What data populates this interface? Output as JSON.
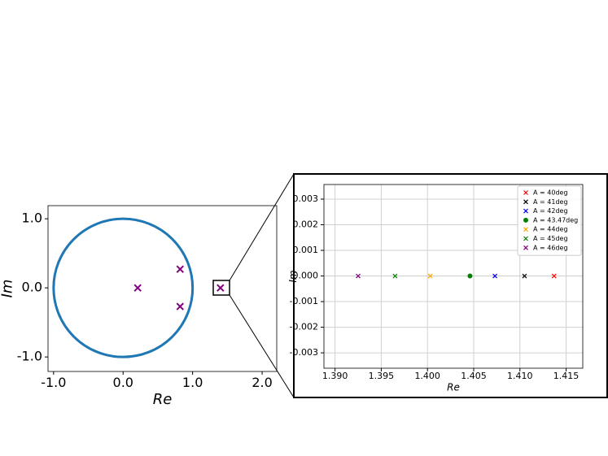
{
  "chart_data": [
    {
      "type": "scatter",
      "xlabel": "Re",
      "ylabel": "Im",
      "xlim": [
        -1.08,
        2.21
      ],
      "ylim": [
        -1.21,
        1.19
      ],
      "xticks": [
        {
          "value": -1,
          "label": "-1.0"
        },
        {
          "value": 0,
          "label": "0.0"
        },
        {
          "value": 1,
          "label": "1.0"
        },
        {
          "value": 2,
          "label": "2.0"
        }
      ],
      "yticks": [
        {
          "value": -1,
          "label": "-1.0"
        },
        {
          "value": 0,
          "label": "0.0"
        },
        {
          "value": 1,
          "label": "1.0"
        }
      ],
      "grid": false,
      "series": [
        {
          "color": "#800080",
          "marker": "x",
          "x": [
            0.21,
            0.82,
            0.82,
            1.4
          ],
          "y": [
            0,
            0.27,
            -0.27,
            0
          ]
        }
      ]
    },
    {
      "type": "scatter",
      "xlabel": "Re",
      "ylabel": "Im",
      "xlim": [
        1.3888,
        1.4168
      ],
      "ylim": [
        -0.0036,
        0.00357
      ],
      "xticks": [
        {
          "value": 1.39,
          "label": "1.390"
        },
        {
          "value": 1.395,
          "label": "1.395"
        },
        {
          "value": 1.4,
          "label": "1.400"
        },
        {
          "value": 1.405,
          "label": "1.405"
        },
        {
          "value": 1.41,
          "label": "1.410"
        },
        {
          "value": 1.415,
          "label": "1.415"
        }
      ],
      "yticks": [
        {
          "value": -0.003,
          "label": "-0.003"
        },
        {
          "value": -0.002,
          "label": "-0.002"
        },
        {
          "value": -0.001,
          "label": "-0.001"
        },
        {
          "value": 0,
          "label": "0.000"
        },
        {
          "value": 0.001,
          "label": "0.001"
        },
        {
          "value": 0.002,
          "label": "0.002"
        },
        {
          "value": 0.003,
          "label": "0.003"
        }
      ],
      "grid": true,
      "legend": "upper right",
      "series": [
        {
          "name": "A = 40deg",
          "color": "#ff0000",
          "marker": "x",
          "x": [
            1.4137
          ],
          "y": [
            0
          ]
        },
        {
          "name": "A = 41deg",
          "color": "#000000",
          "marker": "x",
          "x": [
            1.4105
          ],
          "y": [
            0
          ]
        },
        {
          "name": "A = 42deg",
          "color": "#0000ff",
          "marker": "x",
          "x": [
            1.4073
          ],
          "y": [
            0
          ]
        },
        {
          "name": "A = 43.47deg",
          "color": "#008000",
          "marker": "o",
          "x": [
            1.4046
          ],
          "y": [
            0
          ]
        },
        {
          "name": "A = 44deg",
          "color": "#ffa500",
          "marker": "x",
          "x": [
            1.4003
          ],
          "y": [
            0
          ]
        },
        {
          "name": "A = 45deg",
          "color": "#008000",
          "marker": "x",
          "x": [
            1.3965
          ],
          "y": [
            0
          ]
        },
        {
          "name": "A = 46deg",
          "color": "#800080",
          "marker": "x",
          "x": [
            1.3925
          ],
          "y": [
            0
          ]
        }
      ]
    }
  ]
}
